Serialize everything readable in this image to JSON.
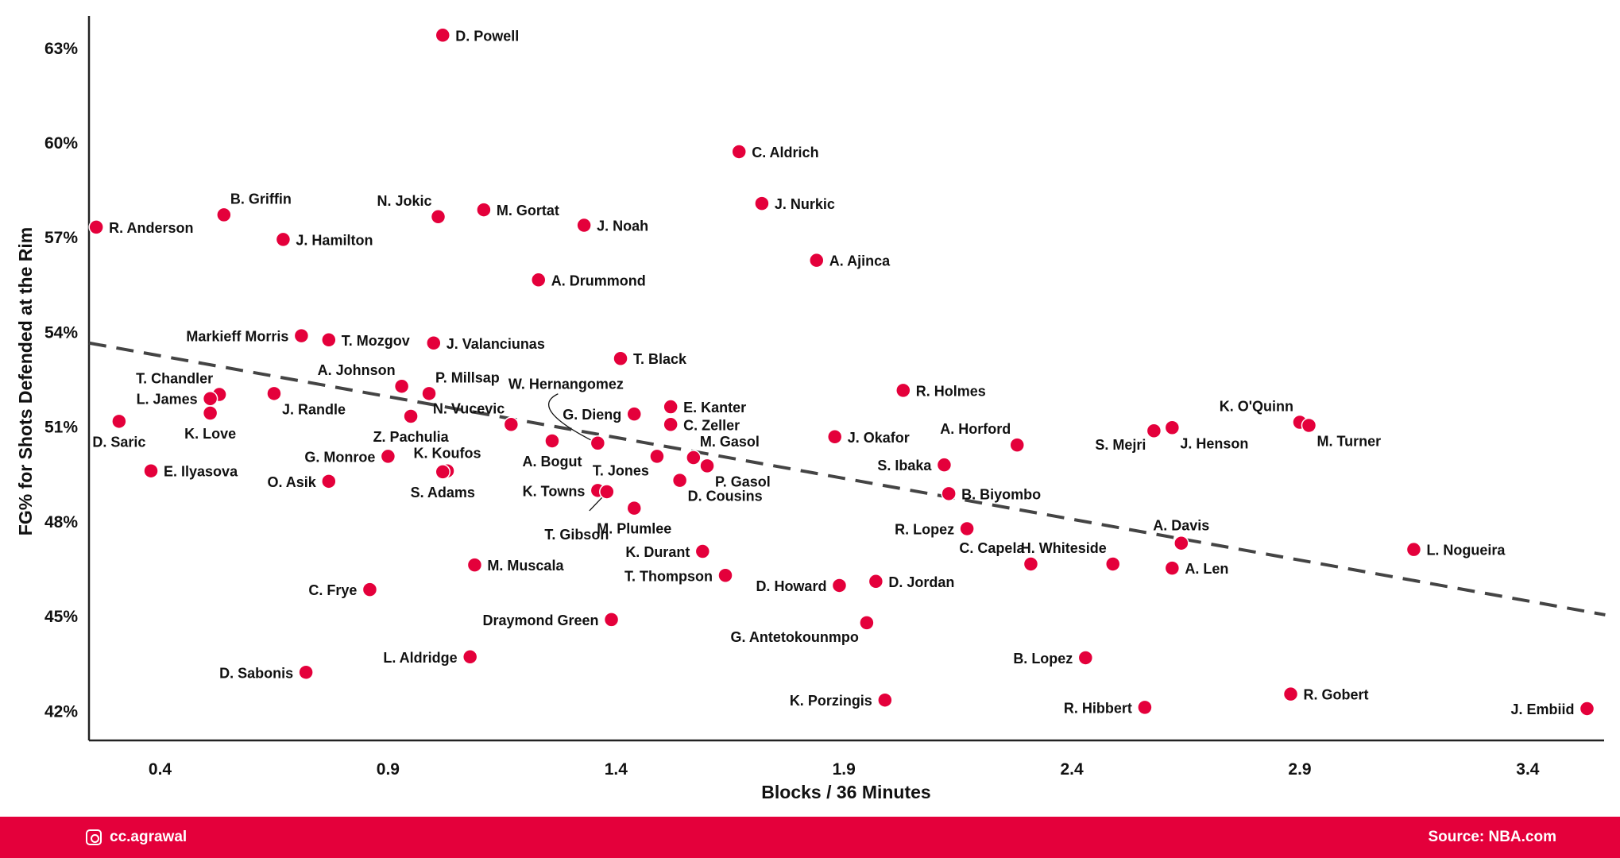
{
  "chart_data": {
    "type": "scatter",
    "title": "",
    "xlabel": "Blocks / 36 Minutes",
    "ylabel": "FG% for Shots Defended at the Rim",
    "xlim": [
      0.244,
      3.57
    ],
    "ylim": [
      41.05,
      64.0
    ],
    "xticks": [
      "0.4",
      "0.9",
      "1.4",
      "1.9",
      "2.4",
      "2.9",
      "3.4"
    ],
    "xtick_values": [
      0.4,
      0.9,
      1.4,
      1.9,
      2.4,
      2.9,
      3.4
    ],
    "yticks": [
      "63%",
      "60%",
      "57%",
      "54%",
      "51%",
      "48%",
      "45%",
      "42%"
    ],
    "ytick_values": [
      63,
      60,
      57,
      54,
      51,
      48,
      45,
      42
    ],
    "grid": false,
    "trendline": {
      "style": "dashed",
      "x": [
        0.244,
        3.57
      ],
      "y": [
        53.64,
        45.03
      ]
    },
    "marker_color": "#e4003b",
    "points": [
      {
        "name": "D. Powell",
        "x": 1.02,
        "y": 63.39
      },
      {
        "name": "C. Aldrich",
        "x": 1.67,
        "y": 59.7
      },
      {
        "name": "J. Nurkic",
        "x": 1.72,
        "y": 58.06
      },
      {
        "name": "A. Ajinca",
        "x": 1.84,
        "y": 56.26
      },
      {
        "name": "R. Anderson",
        "x": 0.26,
        "y": 57.31
      },
      {
        "name": "B. Griffin",
        "x": 0.54,
        "y": 57.7
      },
      {
        "name": "N. Jokic",
        "x": 1.01,
        "y": 57.64
      },
      {
        "name": "M. Gortat",
        "x": 1.11,
        "y": 57.86
      },
      {
        "name": "J. Noah",
        "x": 1.33,
        "y": 57.37
      },
      {
        "name": "J. Hamilton",
        "x": 0.67,
        "y": 56.92
      },
      {
        "name": "A. Drummond",
        "x": 1.23,
        "y": 55.64
      },
      {
        "name": "Markieff Morris",
        "x": 0.71,
        "y": 53.87
      },
      {
        "name": "T. Mozgov",
        "x": 0.77,
        "y": 53.74
      },
      {
        "name": "J. Valanciunas",
        "x": 1.0,
        "y": 53.64
      },
      {
        "name": "T. Black",
        "x": 1.41,
        "y": 53.15
      },
      {
        "name": "A. Johnson",
        "x": 0.93,
        "y": 52.27
      },
      {
        "name": "P. Millsap",
        "x": 0.99,
        "y": 52.04
      },
      {
        "name": "T. Chandler",
        "x": 0.53,
        "y": 52.01
      },
      {
        "name": "L. James",
        "x": 0.51,
        "y": 51.88
      },
      {
        "name": "J. Randle",
        "x": 0.65,
        "y": 52.04
      },
      {
        "name": "K. Love",
        "x": 0.51,
        "y": 51.42
      },
      {
        "name": "Z. Pachulia",
        "x": 0.95,
        "y": 51.32
      },
      {
        "name": "D. Saric",
        "x": 0.31,
        "y": 51.16
      },
      {
        "name": "N. Vucevic",
        "x": 1.17,
        "y": 51.06
      },
      {
        "name": "R. Holmes",
        "x": 2.03,
        "y": 52.14
      },
      {
        "name": "G. Dieng",
        "x": 1.44,
        "y": 51.39
      },
      {
        "name": "E. Kanter",
        "x": 1.52,
        "y": 51.62
      },
      {
        "name": "C. Zeller",
        "x": 1.52,
        "y": 51.06
      },
      {
        "name": "W. Hernangomez",
        "x": 1.36,
        "y": 50.47
      },
      {
        "name": "A. Bogut",
        "x": 1.26,
        "y": 50.54
      },
      {
        "name": "J. Okafor",
        "x": 1.88,
        "y": 50.67
      },
      {
        "name": "A. Horford",
        "x": 2.28,
        "y": 50.41
      },
      {
        "name": "S. Mejri",
        "x": 2.58,
        "y": 50.86
      },
      {
        "name": "J. Henson",
        "x": 2.62,
        "y": 50.96
      },
      {
        "name": "K. O'Quinn",
        "x": 2.9,
        "y": 51.13
      },
      {
        "name": "M. Turner",
        "x": 2.92,
        "y": 51.03
      },
      {
        "name": "G. Monroe",
        "x": 0.9,
        "y": 50.05
      },
      {
        "name": "T. Jones",
        "x": 1.49,
        "y": 50.05
      },
      {
        "name": "M. Gasol",
        "x": 1.57,
        "y": 50.01
      },
      {
        "name": "P. Gasol",
        "x": 1.6,
        "y": 49.75
      },
      {
        "name": "S. Ibaka",
        "x": 2.12,
        "y": 49.78
      },
      {
        "name": "E. Ilyasova",
        "x": 0.38,
        "y": 49.59
      },
      {
        "name": "K. Koufos",
        "x": 1.03,
        "y": 49.59
      },
      {
        "name": "S. Adams",
        "x": 1.02,
        "y": 49.56
      },
      {
        "name": "O. Asik",
        "x": 0.77,
        "y": 49.26
      },
      {
        "name": "D. Cousins",
        "x": 1.54,
        "y": 49.29
      },
      {
        "name": "K. Towns",
        "x": 1.36,
        "y": 48.97
      },
      {
        "name": "T. Gibson",
        "x": 1.38,
        "y": 48.93
      },
      {
        "name": "B. Biyombo",
        "x": 2.13,
        "y": 48.87
      },
      {
        "name": "M. Plumlee",
        "x": 1.44,
        "y": 48.41
      },
      {
        "name": "R. Lopez",
        "x": 2.17,
        "y": 47.76
      },
      {
        "name": "A. Davis",
        "x": 2.64,
        "y": 47.3
      },
      {
        "name": "L. Nogueira",
        "x": 3.15,
        "y": 47.1
      },
      {
        "name": "K. Durant",
        "x": 1.59,
        "y": 47.04
      },
      {
        "name": "H. Whiteside",
        "x": 2.49,
        "y": 46.64
      },
      {
        "name": "C. Capela",
        "x": 2.31,
        "y": 46.64
      },
      {
        "name": "A. Len",
        "x": 2.62,
        "y": 46.51
      },
      {
        "name": "M. Muscala",
        "x": 1.09,
        "y": 46.61
      },
      {
        "name": "T. Thompson",
        "x": 1.64,
        "y": 46.28
      },
      {
        "name": "D. Jordan",
        "x": 1.97,
        "y": 46.09
      },
      {
        "name": "D. Howard",
        "x": 1.89,
        "y": 45.96
      },
      {
        "name": "C. Frye",
        "x": 0.86,
        "y": 45.83
      },
      {
        "name": "Draymond Green",
        "x": 1.39,
        "y": 44.88
      },
      {
        "name": "G. Antetokounmpo",
        "x": 1.95,
        "y": 44.78
      },
      {
        "name": "L. Aldridge",
        "x": 1.08,
        "y": 43.7
      },
      {
        "name": "B. Lopez",
        "x": 2.43,
        "y": 43.67
      },
      {
        "name": "D. Sabonis",
        "x": 0.72,
        "y": 43.21
      },
      {
        "name": "R. Gobert",
        "x": 2.88,
        "y": 42.52
      },
      {
        "name": "K. Porzingis",
        "x": 1.99,
        "y": 42.33
      },
      {
        "name": "R. Hibbert",
        "x": 2.56,
        "y": 42.1
      },
      {
        "name": "J. Embiid",
        "x": 3.53,
        "y": 42.06
      }
    ]
  },
  "footer": {
    "handle": "cc.agrawal",
    "handle_icon": "instagram-icon",
    "source": "Source: NBA.com"
  }
}
